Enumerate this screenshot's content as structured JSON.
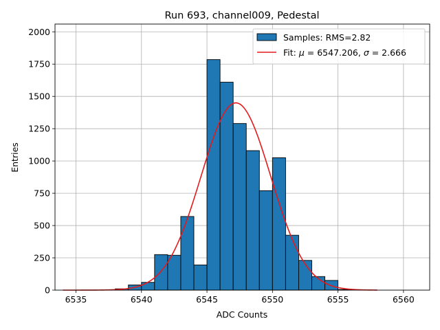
{
  "chart_data": {
    "type": "bar",
    "title": "Run 693, channel009, Pedestal",
    "xlabel": "ADC Counts",
    "ylabel": "Entries",
    "xlim": [
      6533.4,
      6562.0
    ],
    "ylim": [
      0,
      2060
    ],
    "x_ticks": [
      6535,
      6540,
      6545,
      6550,
      6555,
      6560
    ],
    "x_tick_labels": [
      "6535",
      "6540",
      "6545",
      "6550",
      "6555",
      "6560"
    ],
    "y_ticks": [
      0,
      250,
      500,
      750,
      1000,
      1250,
      1500,
      1750,
      2000
    ],
    "y_tick_labels": [
      "0",
      "250",
      "500",
      "750",
      "1000",
      "1250",
      "1500",
      "1750",
      "2000"
    ],
    "grid": true,
    "legend_position": "top-right",
    "histogram": {
      "name": "Samples: RMS=2.82",
      "bin_width": 1,
      "bin_starts": [
        6538,
        6539,
        6540,
        6541,
        6542,
        6543,
        6544,
        6545,
        6546,
        6547,
        6548,
        6549,
        6550,
        6551,
        6552,
        6553,
        6554,
        6555
      ],
      "values": [
        10,
        40,
        60,
        275,
        270,
        570,
        195,
        1785,
        1610,
        1290,
        1080,
        770,
        1025,
        425,
        230,
        105,
        75,
        5
      ],
      "color": "#1f77b4",
      "edge_color": "#000000"
    },
    "fit": {
      "label_prefix": "Fit: ",
      "mu_symbol": "μ",
      "mu_text": " = 6547.206, ",
      "sigma_symbol": "σ",
      "sigma_text": " = 2.666",
      "mu": 6547.206,
      "sigma": 2.666,
      "amplitude": 1450,
      "x_range": [
        6534,
        6558
      ],
      "color": "#e31a1c"
    }
  }
}
